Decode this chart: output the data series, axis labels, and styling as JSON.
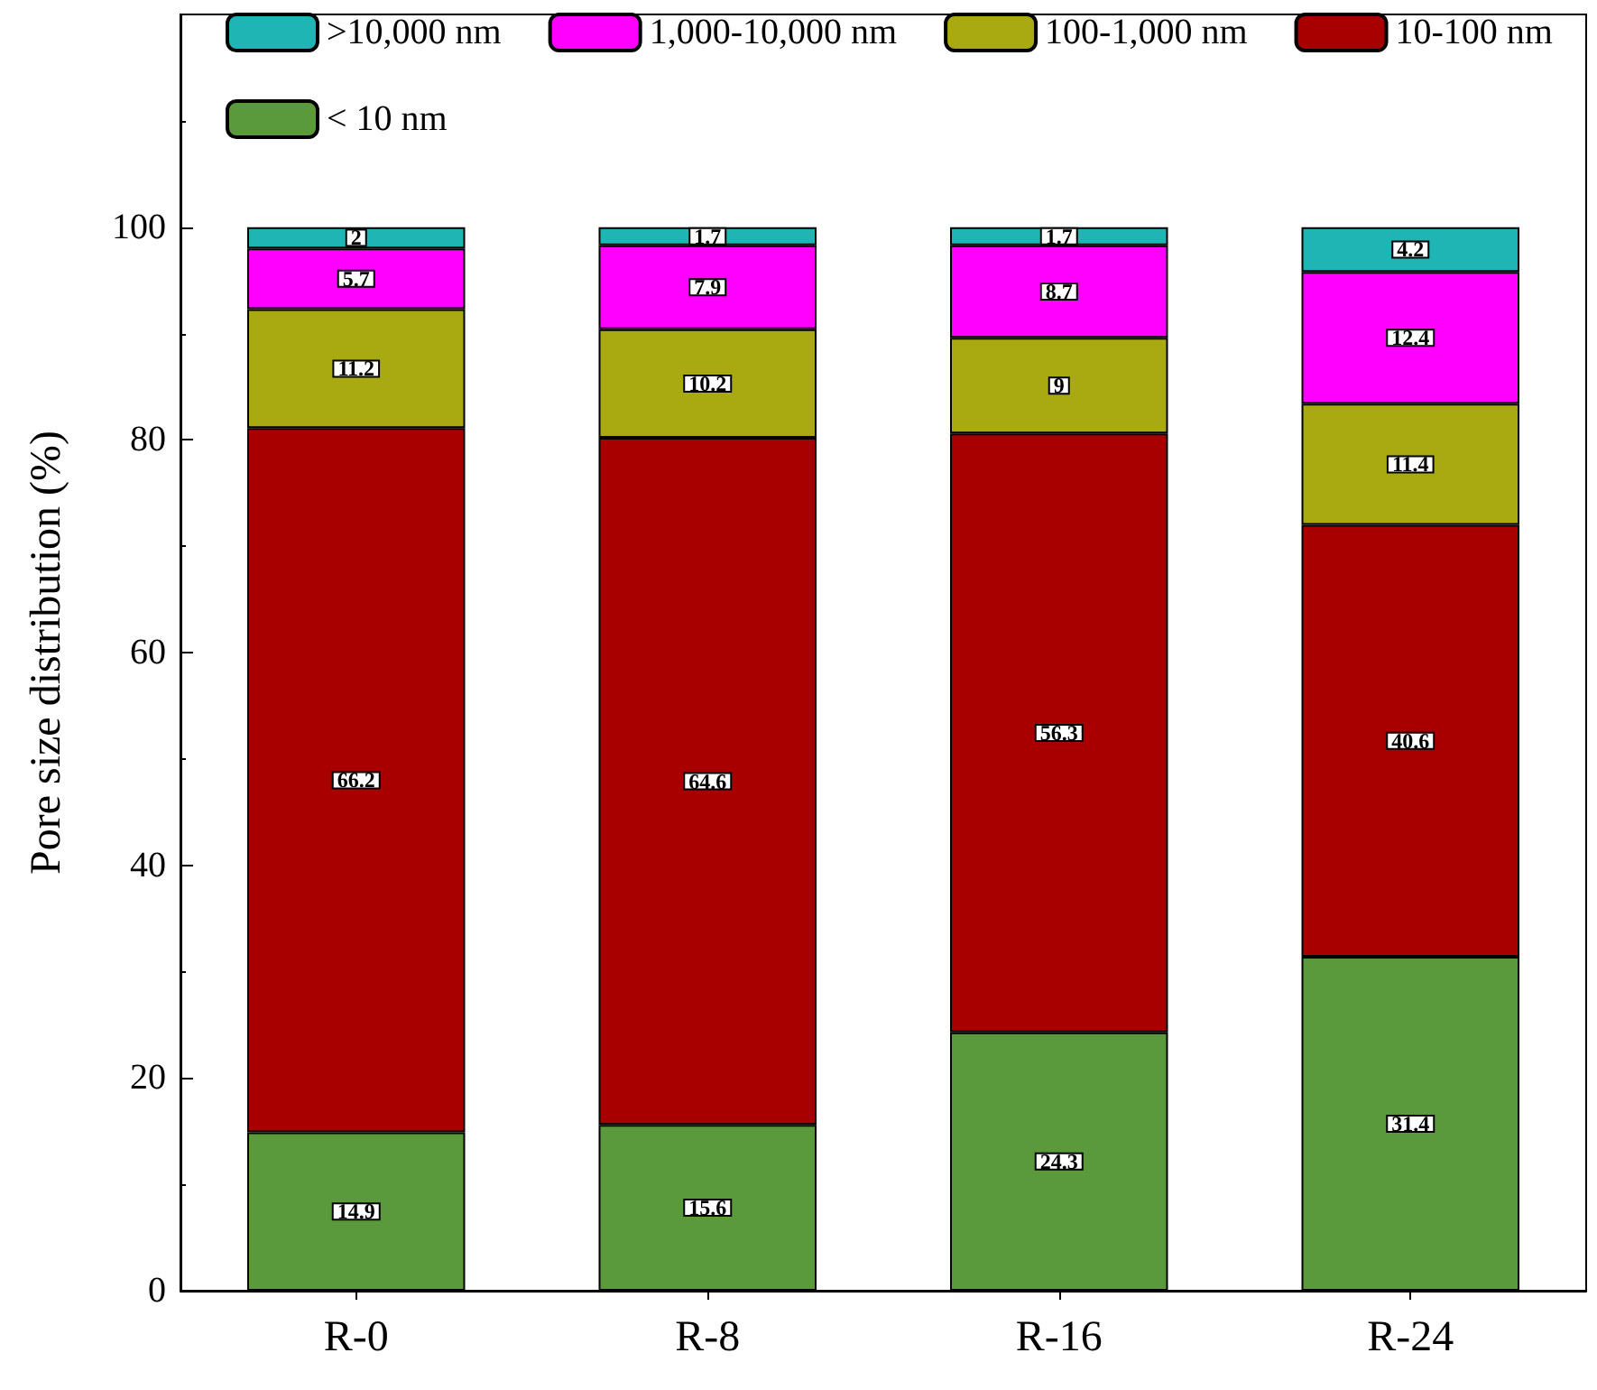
{
  "chart_data": {
    "type": "bar",
    "stacked": true,
    "ylabel": "Pore size distribution (%)",
    "categories": [
      "R-0",
      "R-8",
      "R-16",
      "R-24"
    ],
    "series": [
      {
        "name": "< 10 nm",
        "color": "#5b9a3c",
        "values": [
          14.9,
          15.6,
          24.3,
          31.4
        ]
      },
      {
        "name": "10-100 nm",
        "color": "#a80000",
        "values": [
          66.2,
          64.6,
          56.3,
          40.6
        ]
      },
      {
        "name": "100-1,000 nm",
        "color": "#a9a912",
        "values": [
          11.2,
          10.2,
          9,
          11.4
        ]
      },
      {
        "name": "1,000-10,000 nm",
        "color": "#ff00ff",
        "values": [
          5.7,
          7.9,
          8.7,
          12.4
        ]
      },
      {
        "name": ">10,000 nm",
        "color": "#20b5b5",
        "values": [
          2,
          1.7,
          1.7,
          4.2
        ]
      }
    ],
    "ylim": [
      0,
      120
    ],
    "yticks": [
      0,
      20,
      40,
      60,
      80,
      100
    ],
    "grid": false,
    "legend": "top",
    "data_labels": true
  }
}
